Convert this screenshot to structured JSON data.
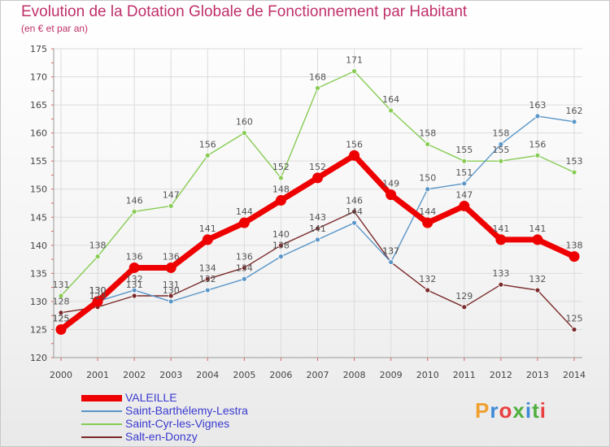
{
  "header": {
    "title": "Evolution de la Dotation Globale de Fonctionnement par Habitant",
    "subtitle": "(en € et par an)"
  },
  "logo": {
    "text": "Proxiti",
    "colors": [
      "#f0a030",
      "#3c8ad8",
      "#e84040",
      "#50b040"
    ]
  },
  "chart_data": {
    "type": "line",
    "x": [
      2000,
      2001,
      2002,
      2003,
      2004,
      2005,
      2006,
      2007,
      2008,
      2009,
      2010,
      2011,
      2012,
      2013,
      2014
    ],
    "ylim": [
      120,
      175
    ],
    "yticks": [
      120,
      125,
      130,
      135,
      140,
      145,
      150,
      155,
      160,
      165,
      170,
      175
    ],
    "grid": true,
    "legend_position": "bottom-left",
    "series": [
      {
        "name": "VALEILLE",
        "color": "#ee0000",
        "values": [
          125,
          130,
          136,
          136,
          141,
          144,
          148,
          152,
          156,
          149,
          144,
          147,
          141,
          141,
          138
        ]
      },
      {
        "name": "Saint-Barthélemy-Lestra",
        "color": "#5a96c8",
        "values": [
          125,
          130,
          132,
          130,
          132,
          134,
          138,
          141,
          144,
          137,
          150,
          151,
          158,
          163,
          162
        ]
      },
      {
        "name": "Saint-Cyr-les-Vignes",
        "color": "#88cc55",
        "values": [
          131,
          138,
          146,
          147,
          156,
          160,
          152,
          168,
          171,
          164,
          158,
          155,
          155,
          156,
          153
        ]
      },
      {
        "name": "Salt-en-Donzy",
        "color": "#7a2a2a",
        "values": [
          128,
          129,
          131,
          131,
          134,
          136,
          140,
          143,
          146,
          137,
          132,
          129,
          133,
          132,
          125
        ]
      }
    ]
  }
}
